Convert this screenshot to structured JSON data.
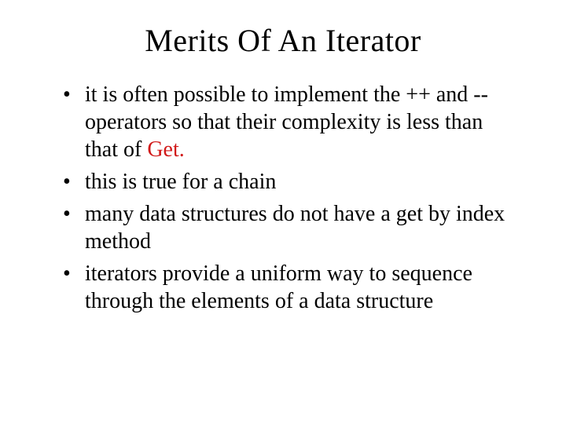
{
  "slide": {
    "title": "Merits Of An Iterator",
    "title_fontsize": 40,
    "body_fontsize": 28,
    "font_family": "Times New Roman",
    "background_color": "#ffffff",
    "text_color": "#000000",
    "accent_color": "#d11a1a",
    "bullets": [
      {
        "pre": "it is often possible to implement the ++ and --  operators so that their complexity is less than that of ",
        "accent": "Get.",
        "post": ""
      },
      {
        "pre": "this is true for a chain",
        "accent": "",
        "post": ""
      },
      {
        "pre": "many data structures do not have a get by index method",
        "accent": "",
        "post": ""
      },
      {
        "pre": "iterators provide a uniform way to sequence through the elements of a data structure",
        "accent": "",
        "post": ""
      }
    ]
  }
}
